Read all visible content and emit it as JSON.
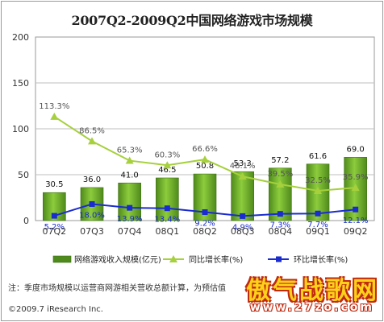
{
  "title": "2007Q2-2009Q2中国网络游戏市场规模",
  "note": "注：季度市场规模以运营商网游相关营收总额计算，为预估值",
  "copyright": "©2009.7 iResearch Inc.",
  "watermark": {
    "text": "傲气战歌网",
    "url": "www.27zo.com"
  },
  "colors": {
    "bar": "#4f8a1c",
    "bar_light": "#8ccc3c",
    "line_yoy": "#a6d03c",
    "line_qoq": "#1a2ccf",
    "label_yoy": "#555555",
    "label_qoq": "#1a2ccf",
    "grid": "#bfbfbf"
  },
  "chart_data": {
    "type": "bar+line",
    "categories": [
      "07Q2",
      "07Q3",
      "07Q4",
      "08Q1",
      "08Q2",
      "08Q3",
      "08Q4",
      "09Q1",
      "09Q2"
    ],
    "ylim": [
      0,
      200
    ],
    "yticks": [
      "0",
      "50",
      "100",
      "150",
      "200"
    ],
    "grid": true,
    "legend_position": "bottom",
    "series": [
      {
        "name": "网络游戏收入规模(亿元)",
        "type": "bar",
        "values": [
          30.5,
          36.0,
          41.0,
          46.5,
          50.8,
          53.3,
          57.2,
          61.6,
          69.0
        ],
        "labels": [
          "30.5",
          "36.0",
          "41.0",
          "46.5",
          "50.8",
          "53.3",
          "57.2",
          "61.6",
          "69.0"
        ]
      },
      {
        "name": "同比增长率(%)",
        "type": "line",
        "values": [
          113.3,
          86.5,
          65.3,
          60.3,
          66.6,
          48.1,
          39.5,
          32.5,
          35.9
        ],
        "labels": [
          "113.3%",
          "86.5%",
          "65.3%",
          "60.3%",
          "66.6%",
          "48.1%",
          "39.5%",
          "32.5%",
          "35.9%"
        ]
      },
      {
        "name": "环比增长率(%)",
        "type": "line",
        "values": [
          5.2,
          18.0,
          13.9,
          13.4,
          9.2,
          4.9,
          7.3,
          7.7,
          12.1
        ],
        "labels": [
          "5.2%",
          "18.0%",
          "13.9%",
          "13.4%",
          "9.2%",
          "4.9%",
          "7.3%",
          "7.7%",
          "12.1%"
        ]
      }
    ]
  }
}
